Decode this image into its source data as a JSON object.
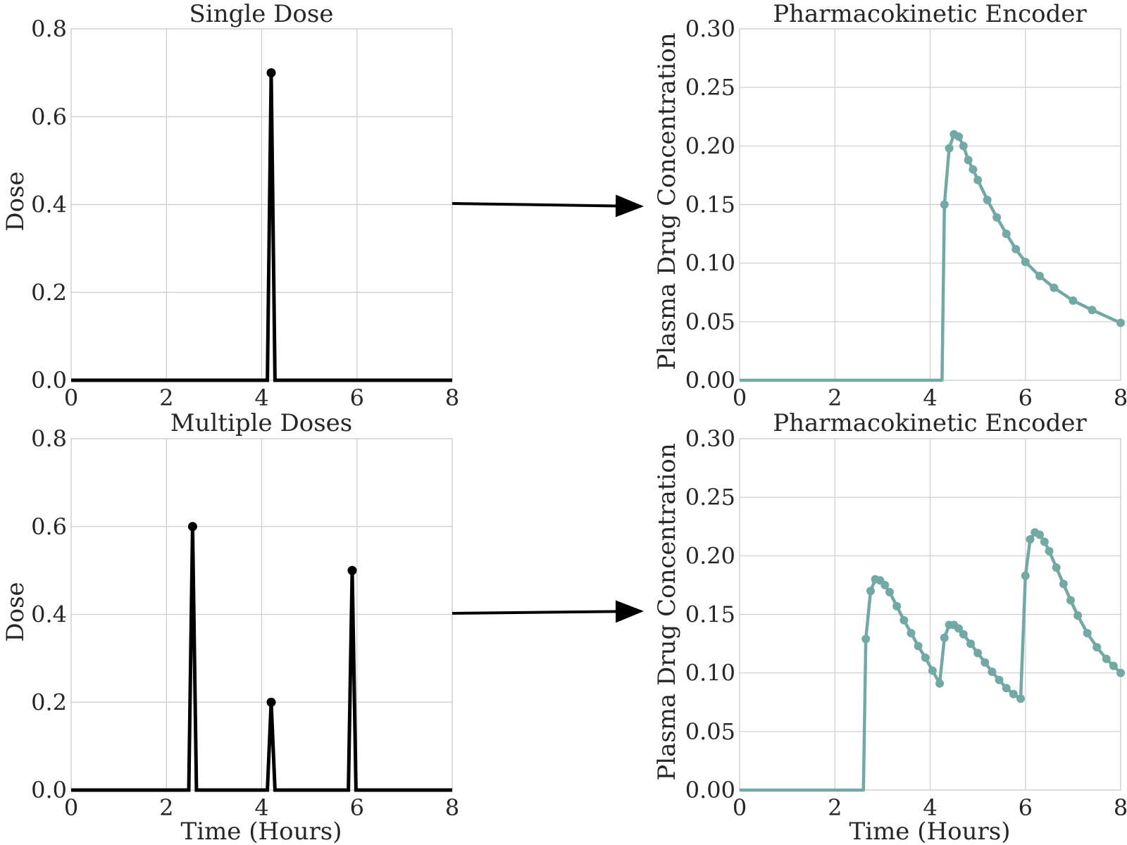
{
  "colors": {
    "dose": "#000000",
    "concentration": "#72a9a4",
    "grid": "#cccccc",
    "text": "#262626",
    "arrow": "#000000"
  },
  "chart_data": [
    {
      "id": "single-dose",
      "type": "line",
      "title": "Single Dose",
      "xlabel": "",
      "ylabel": "Dose",
      "xlim": [
        0,
        8
      ],
      "ylim": [
        0,
        0.8
      ],
      "xticks": [
        "0",
        "2",
        "4",
        "6",
        "8"
      ],
      "yticks": [
        "0.0",
        "0.2",
        "0.4",
        "0.6",
        "0.8"
      ],
      "grid": true,
      "series": [
        {
          "dose_times": [
            4.2
          ],
          "dose_values": [
            0.7
          ],
          "x": [
            0,
            4.12,
            4.2,
            4.28,
            8
          ],
          "y": [
            0,
            0,
            0.7,
            0,
            0
          ]
        }
      ]
    },
    {
      "id": "single-dose-encoder",
      "type": "line",
      "title": "Pharmacokinetic Encoder",
      "xlabel": "",
      "ylabel": "Plasma Drug Concentration",
      "xlim": [
        0,
        8
      ],
      "ylim": [
        0,
        0.3
      ],
      "xticks": [
        "0",
        "2",
        "4",
        "6",
        "8"
      ],
      "yticks": [
        "0.00",
        "0.05",
        "0.10",
        "0.15",
        "0.20",
        "0.25",
        "0.30"
      ],
      "grid": true,
      "series": [
        {
          "x": [
            4.3,
            4.4,
            4.5,
            4.6,
            4.7,
            4.8,
            4.9,
            5.0,
            5.2,
            5.4,
            5.6,
            5.8,
            6.0,
            6.3,
            6.6,
            7.0,
            7.4,
            8.0
          ],
          "y": [
            0.15,
            0.198,
            0.21,
            0.208,
            0.2,
            0.188,
            0.18,
            0.171,
            0.154,
            0.139,
            0.125,
            0.112,
            0.101,
            0.089,
            0.079,
            0.068,
            0.06,
            0.049
          ]
        }
      ]
    },
    {
      "id": "multiple-doses",
      "type": "line",
      "title": "Multiple Doses",
      "xlabel": "Time (Hours)",
      "ylabel": "Dose",
      "xlim": [
        0,
        8
      ],
      "ylim": [
        0,
        0.8
      ],
      "xticks": [
        "0",
        "2",
        "4",
        "6",
        "8"
      ],
      "yticks": [
        "0.0",
        "0.2",
        "0.4",
        "0.6",
        "0.8"
      ],
      "grid": true,
      "series": [
        {
          "dose_times": [
            2.55,
            4.2,
            5.9
          ],
          "dose_values": [
            0.6,
            0.2,
            0.5
          ],
          "x": [
            0,
            2.47,
            2.55,
            2.63,
            4.12,
            4.2,
            4.28,
            5.82,
            5.9,
            5.98,
            8
          ],
          "y": [
            0,
            0,
            0.6,
            0,
            0,
            0.2,
            0,
            0,
            0.5,
            0,
            0
          ]
        }
      ]
    },
    {
      "id": "multiple-doses-encoder",
      "type": "line",
      "title": "Pharmacokinetic Encoder",
      "xlabel": "Time (Hours)",
      "ylabel": "Plasma Drug Concentration",
      "xlim": [
        0,
        8
      ],
      "ylim": [
        0,
        0.3
      ],
      "xticks": [
        "0",
        "2",
        "4",
        "6",
        "8"
      ],
      "yticks": [
        "0.00",
        "0.05",
        "0.10",
        "0.15",
        "0.20",
        "0.25",
        "0.30"
      ],
      "grid": true,
      "series": [
        {
          "x": [
            2.65,
            2.75,
            2.85,
            2.95,
            3.05,
            3.15,
            3.3,
            3.45,
            3.6,
            3.75,
            3.9,
            4.05,
            4.2,
            4.3,
            4.4,
            4.5,
            4.6,
            4.7,
            4.85,
            5.0,
            5.15,
            5.3,
            5.45,
            5.6,
            5.75,
            5.9,
            6.0,
            6.1,
            6.2,
            6.3,
            6.4,
            6.5,
            6.65,
            6.8,
            6.95,
            7.1,
            7.3,
            7.5,
            7.7,
            7.85,
            8.0
          ],
          "y": [
            0.129,
            0.17,
            0.18,
            0.179,
            0.175,
            0.169,
            0.157,
            0.145,
            0.134,
            0.123,
            0.113,
            0.102,
            0.091,
            0.13,
            0.141,
            0.141,
            0.138,
            0.133,
            0.125,
            0.117,
            0.109,
            0.101,
            0.094,
            0.087,
            0.082,
            0.078,
            0.183,
            0.214,
            0.22,
            0.218,
            0.212,
            0.204,
            0.19,
            0.176,
            0.162,
            0.149,
            0.134,
            0.122,
            0.112,
            0.106,
            0.1
          ]
        }
      ]
    }
  ]
}
